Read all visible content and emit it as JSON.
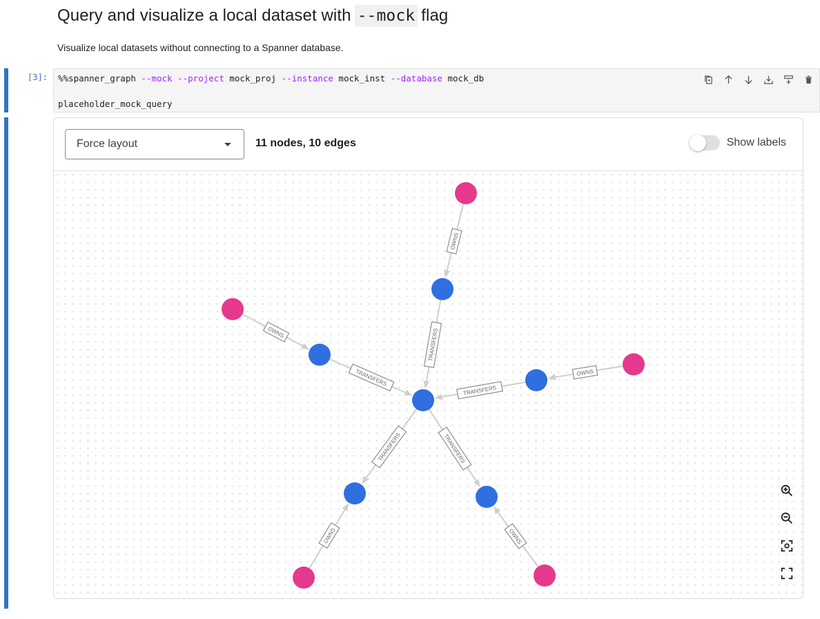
{
  "markdown": {
    "title_before": "Query and visualize a local dataset with",
    "title_code": "--mock",
    "title_after": "flag",
    "description": "Visualize local datasets without connecting to a Spanner database."
  },
  "cell": {
    "prompt": "[3]:",
    "code_line1": {
      "magic": "%%spanner_graph ",
      "flag1": "--mock",
      "flag2": "--project",
      "project": " mock_proj ",
      "flag3": "--instance",
      "instance": " mock_inst ",
      "flag4": "--database",
      "database": " mock_db"
    },
    "code_line2": "placeholder_mock_query",
    "toolbar": [
      "copy-icon",
      "move-up-icon",
      "move-down-icon",
      "insert-above-icon",
      "insert-below-icon",
      "delete-icon"
    ]
  },
  "viewer": {
    "layout_select": "Force layout",
    "counts": "11 nodes, 10 edges",
    "show_labels": "Show labels",
    "show_labels_on": false,
    "colors": {
      "account": "#2f6fe0",
      "person": "#e5398d",
      "edge": "#cfcfcf",
      "label_border": "#8e8e8e"
    },
    "nodes": [
      {
        "id": "hub",
        "kind": "account"
      },
      {
        "id": "a_top",
        "kind": "account"
      },
      {
        "id": "a_left",
        "kind": "account"
      },
      {
        "id": "a_right",
        "kind": "account"
      },
      {
        "id": "a_bl",
        "kind": "account"
      },
      {
        "id": "a_br",
        "kind": "account"
      },
      {
        "id": "p_top",
        "kind": "person"
      },
      {
        "id": "p_left",
        "kind": "person"
      },
      {
        "id": "p_right",
        "kind": "person"
      },
      {
        "id": "p_bl",
        "kind": "person"
      },
      {
        "id": "p_br",
        "kind": "person"
      }
    ],
    "edges": [
      {
        "from": "p_top",
        "to": "a_top",
        "label": "OWNS"
      },
      {
        "from": "p_left",
        "to": "a_left",
        "label": "OWNS"
      },
      {
        "from": "p_right",
        "to": "a_right",
        "label": "OWNS"
      },
      {
        "from": "p_bl",
        "to": "a_bl",
        "label": "OWNS"
      },
      {
        "from": "p_br",
        "to": "a_br",
        "label": "OWNS"
      },
      {
        "from": "a_top",
        "to": "hub",
        "label": "TRANSFERS"
      },
      {
        "from": "a_left",
        "to": "hub",
        "label": "TRANSFERS"
      },
      {
        "from": "a_right",
        "to": "hub",
        "label": "TRANSFERS"
      },
      {
        "from": "hub",
        "to": "a_bl",
        "label": "TRANSFERS"
      },
      {
        "from": "hub",
        "to": "a_br",
        "label": "TRANSFERS"
      }
    ],
    "zoom_controls": [
      "zoom-in-icon",
      "zoom-out-icon",
      "recenter-icon",
      "fullscreen-icon"
    ]
  }
}
